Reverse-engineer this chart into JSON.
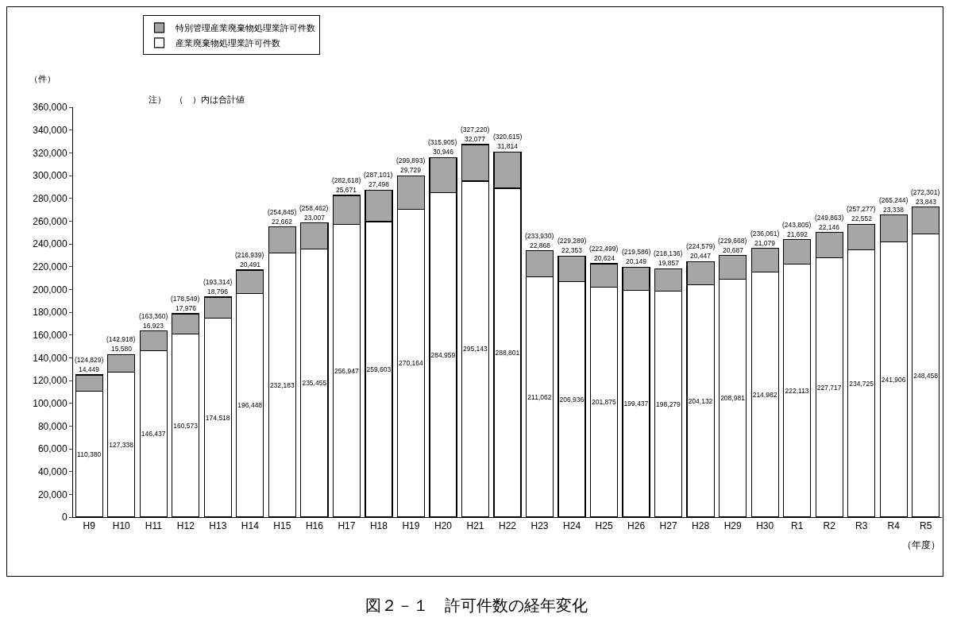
{
  "chart_data": {
    "type": "bar",
    "stacked": true,
    "title": "図２－１　許可件数の経年変化",
    "ylabel": "（件）",
    "xlabel": "（年度）",
    "annotations": [
      "注）　（　）内は合計値"
    ],
    "categories": [
      "H9",
      "H10",
      "H11",
      "H12",
      "H13",
      "H14",
      "H15",
      "H16",
      "H17",
      "H18",
      "H19",
      "H20",
      "H21",
      "H22",
      "H23",
      "H24",
      "H25",
      "H26",
      "H27",
      "H28",
      "H29",
      "H30",
      "R1",
      "R2",
      "R3",
      "R4",
      "R5"
    ],
    "series": [
      {
        "name": "産業廃棄物処理業許可件数",
        "color": "#ffffff",
        "values": [
          110380,
          127338,
          146437,
          160573,
          174518,
          196448,
          232183,
          235455,
          256947,
          259603,
          270164,
          284959,
          295143,
          288801,
          211062,
          206936,
          201875,
          199437,
          198279,
          204132,
          208981,
          214982,
          222113,
          227717,
          234725,
          241906,
          248458
        ],
        "value_labels": [
          "110,380",
          "127,338",
          "146,437",
          "160,573",
          "174,518",
          "196,448",
          "232,183",
          "235,455",
          "256,947",
          "259,603",
          "270,164",
          "284,959",
          "295,143",
          "288,801",
          "211,062",
          "206,936",
          "201,875",
          "199,437",
          "198,279",
          "204,132",
          "208,981",
          "214,982",
          "222,113",
          "227,717",
          "234,725",
          "241,906",
          "248,458"
        ]
      },
      {
        "name": "特別管理産業廃棄物処理業許可件数",
        "color": "#a6a6a6",
        "values": [
          14449,
          15580,
          16923,
          17976,
          18796,
          20491,
          22662,
          23007,
          25671,
          27498,
          29729,
          30946,
          32077,
          31814,
          22868,
          22353,
          20624,
          20149,
          19857,
          20447,
          20687,
          21079,
          21692,
          22146,
          22552,
          23338,
          23843
        ],
        "value_labels": [
          "14,449",
          "15,580",
          "16,923",
          "17,976",
          "18,796",
          "20,491",
          "22,662",
          "23,007",
          "25,671",
          "27,498",
          "29,729",
          "30,946",
          "32,077",
          "31,814",
          "22,868",
          "22,353",
          "20,624",
          "20,149",
          "19,857",
          "20,447",
          "20,687",
          "21,079",
          "21,692",
          "22,146",
          "22,552",
          "23,338",
          "23,843"
        ]
      }
    ],
    "totals": [
      "(124,829)",
      "(142,918)",
      "(163,360)",
      "(178,549)",
      "(193,314)",
      "(216,939)",
      "(254,845)",
      "(258,462)",
      "(282,618)",
      "(287,101)",
      "(299,893)",
      "(315,905)",
      "(327,220)",
      "(320,615)",
      "(233,930)",
      "(229,289)",
      "(222,499)",
      "(219,586)",
      "(218,136)",
      "(224,579)",
      "(229,668)",
      "(236,061)",
      "(243,805)",
      "(249,863)",
      "(257,277)",
      "(265,244)",
      "(272,301)"
    ],
    "ylim": [
      0,
      360000
    ],
    "yticks": [
      {
        "value": 0,
        "label": "0"
      },
      {
        "value": 20000,
        "label": "20,000"
      },
      {
        "value": 40000,
        "label": "40,000"
      },
      {
        "value": 60000,
        "label": "60,000"
      },
      {
        "value": 80000,
        "label": "80,000"
      },
      {
        "value": 100000,
        "label": "100,000"
      },
      {
        "value": 120000,
        "label": "120,000"
      },
      {
        "value": 140000,
        "label": "140,000"
      },
      {
        "value": 160000,
        "label": "160,000"
      },
      {
        "value": 180000,
        "label": "180,000"
      },
      {
        "value": 200000,
        "label": "200,000"
      },
      {
        "value": 220000,
        "label": "220,000"
      },
      {
        "value": 240000,
        "label": "240,000"
      },
      {
        "value": 260000,
        "label": "260,000"
      },
      {
        "value": 280000,
        "label": "280,000"
      },
      {
        "value": 300000,
        "label": "300,000"
      },
      {
        "value": 320000,
        "label": "320,000"
      },
      {
        "value": 340000,
        "label": "340,000"
      },
      {
        "value": 360000,
        "label": "360,000"
      }
    ],
    "grid": false,
    "legend": "top"
  }
}
